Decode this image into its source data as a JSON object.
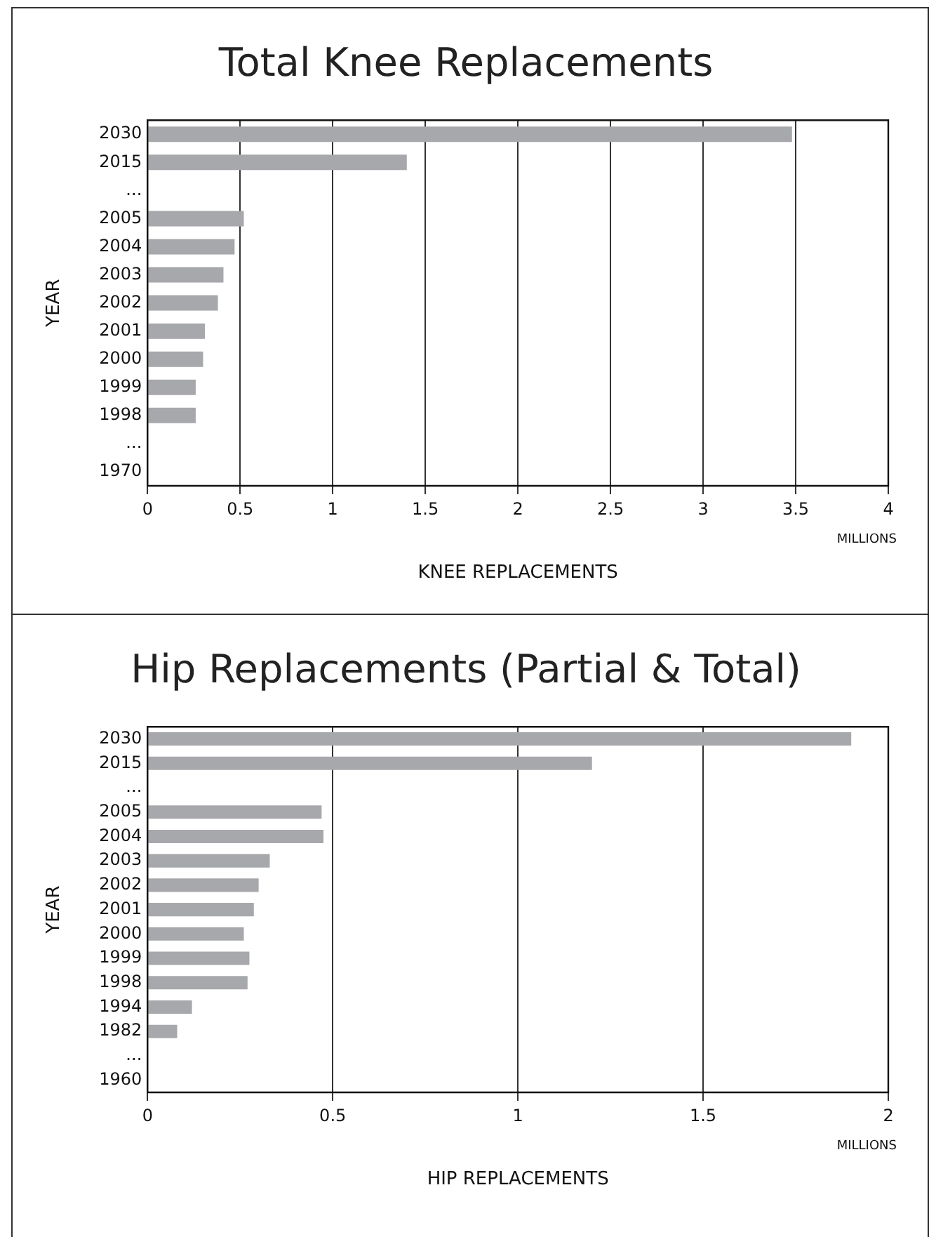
{
  "chart_data": [
    {
      "type": "bar",
      "orientation": "horizontal",
      "title": "Total Knee Replacements",
      "xlabel": "KNEE REPLACEMENTS",
      "ylabel": "YEAR",
      "annotations": [
        "MILLIONS"
      ],
      "categories": [
        "2030",
        "2015",
        "...",
        "2005",
        "2004",
        "2003",
        "2002",
        "2001",
        "2000",
        "1999",
        "1998",
        "...",
        "1970"
      ],
      "values": [
        3.48,
        1.4,
        null,
        0.52,
        0.47,
        0.41,
        0.38,
        0.31,
        0.3,
        0.26,
        0.26,
        null,
        null
      ],
      "color": "#a7a8ab",
      "xlim": [
        0,
        4
      ],
      "xticks": [
        0,
        0.5,
        1,
        1.5,
        2,
        2.5,
        3,
        3.5,
        4
      ],
      "grid": "x"
    },
    {
      "type": "bar",
      "orientation": "horizontal",
      "title": "Hip Replacements (Partial & Total)",
      "xlabel": "HIP REPLACEMENTS",
      "ylabel": "YEAR",
      "annotations": [
        "MILLIONS"
      ],
      "categories": [
        "2030",
        "2015",
        "...",
        "2005",
        "2004",
        "2003",
        "2002",
        "2001",
        "2000",
        "1999",
        "1998",
        "1994",
        "1982",
        "...",
        "1960"
      ],
      "values": [
        1.9,
        1.2,
        null,
        0.47,
        0.475,
        0.33,
        0.3,
        0.287,
        0.26,
        0.275,
        0.27,
        0.12,
        0.08,
        null,
        null
      ],
      "color": "#a7a8ab",
      "xlim": [
        0,
        2
      ],
      "xticks": [
        0,
        0.5,
        1,
        1.5,
        2
      ],
      "grid": "x"
    }
  ]
}
